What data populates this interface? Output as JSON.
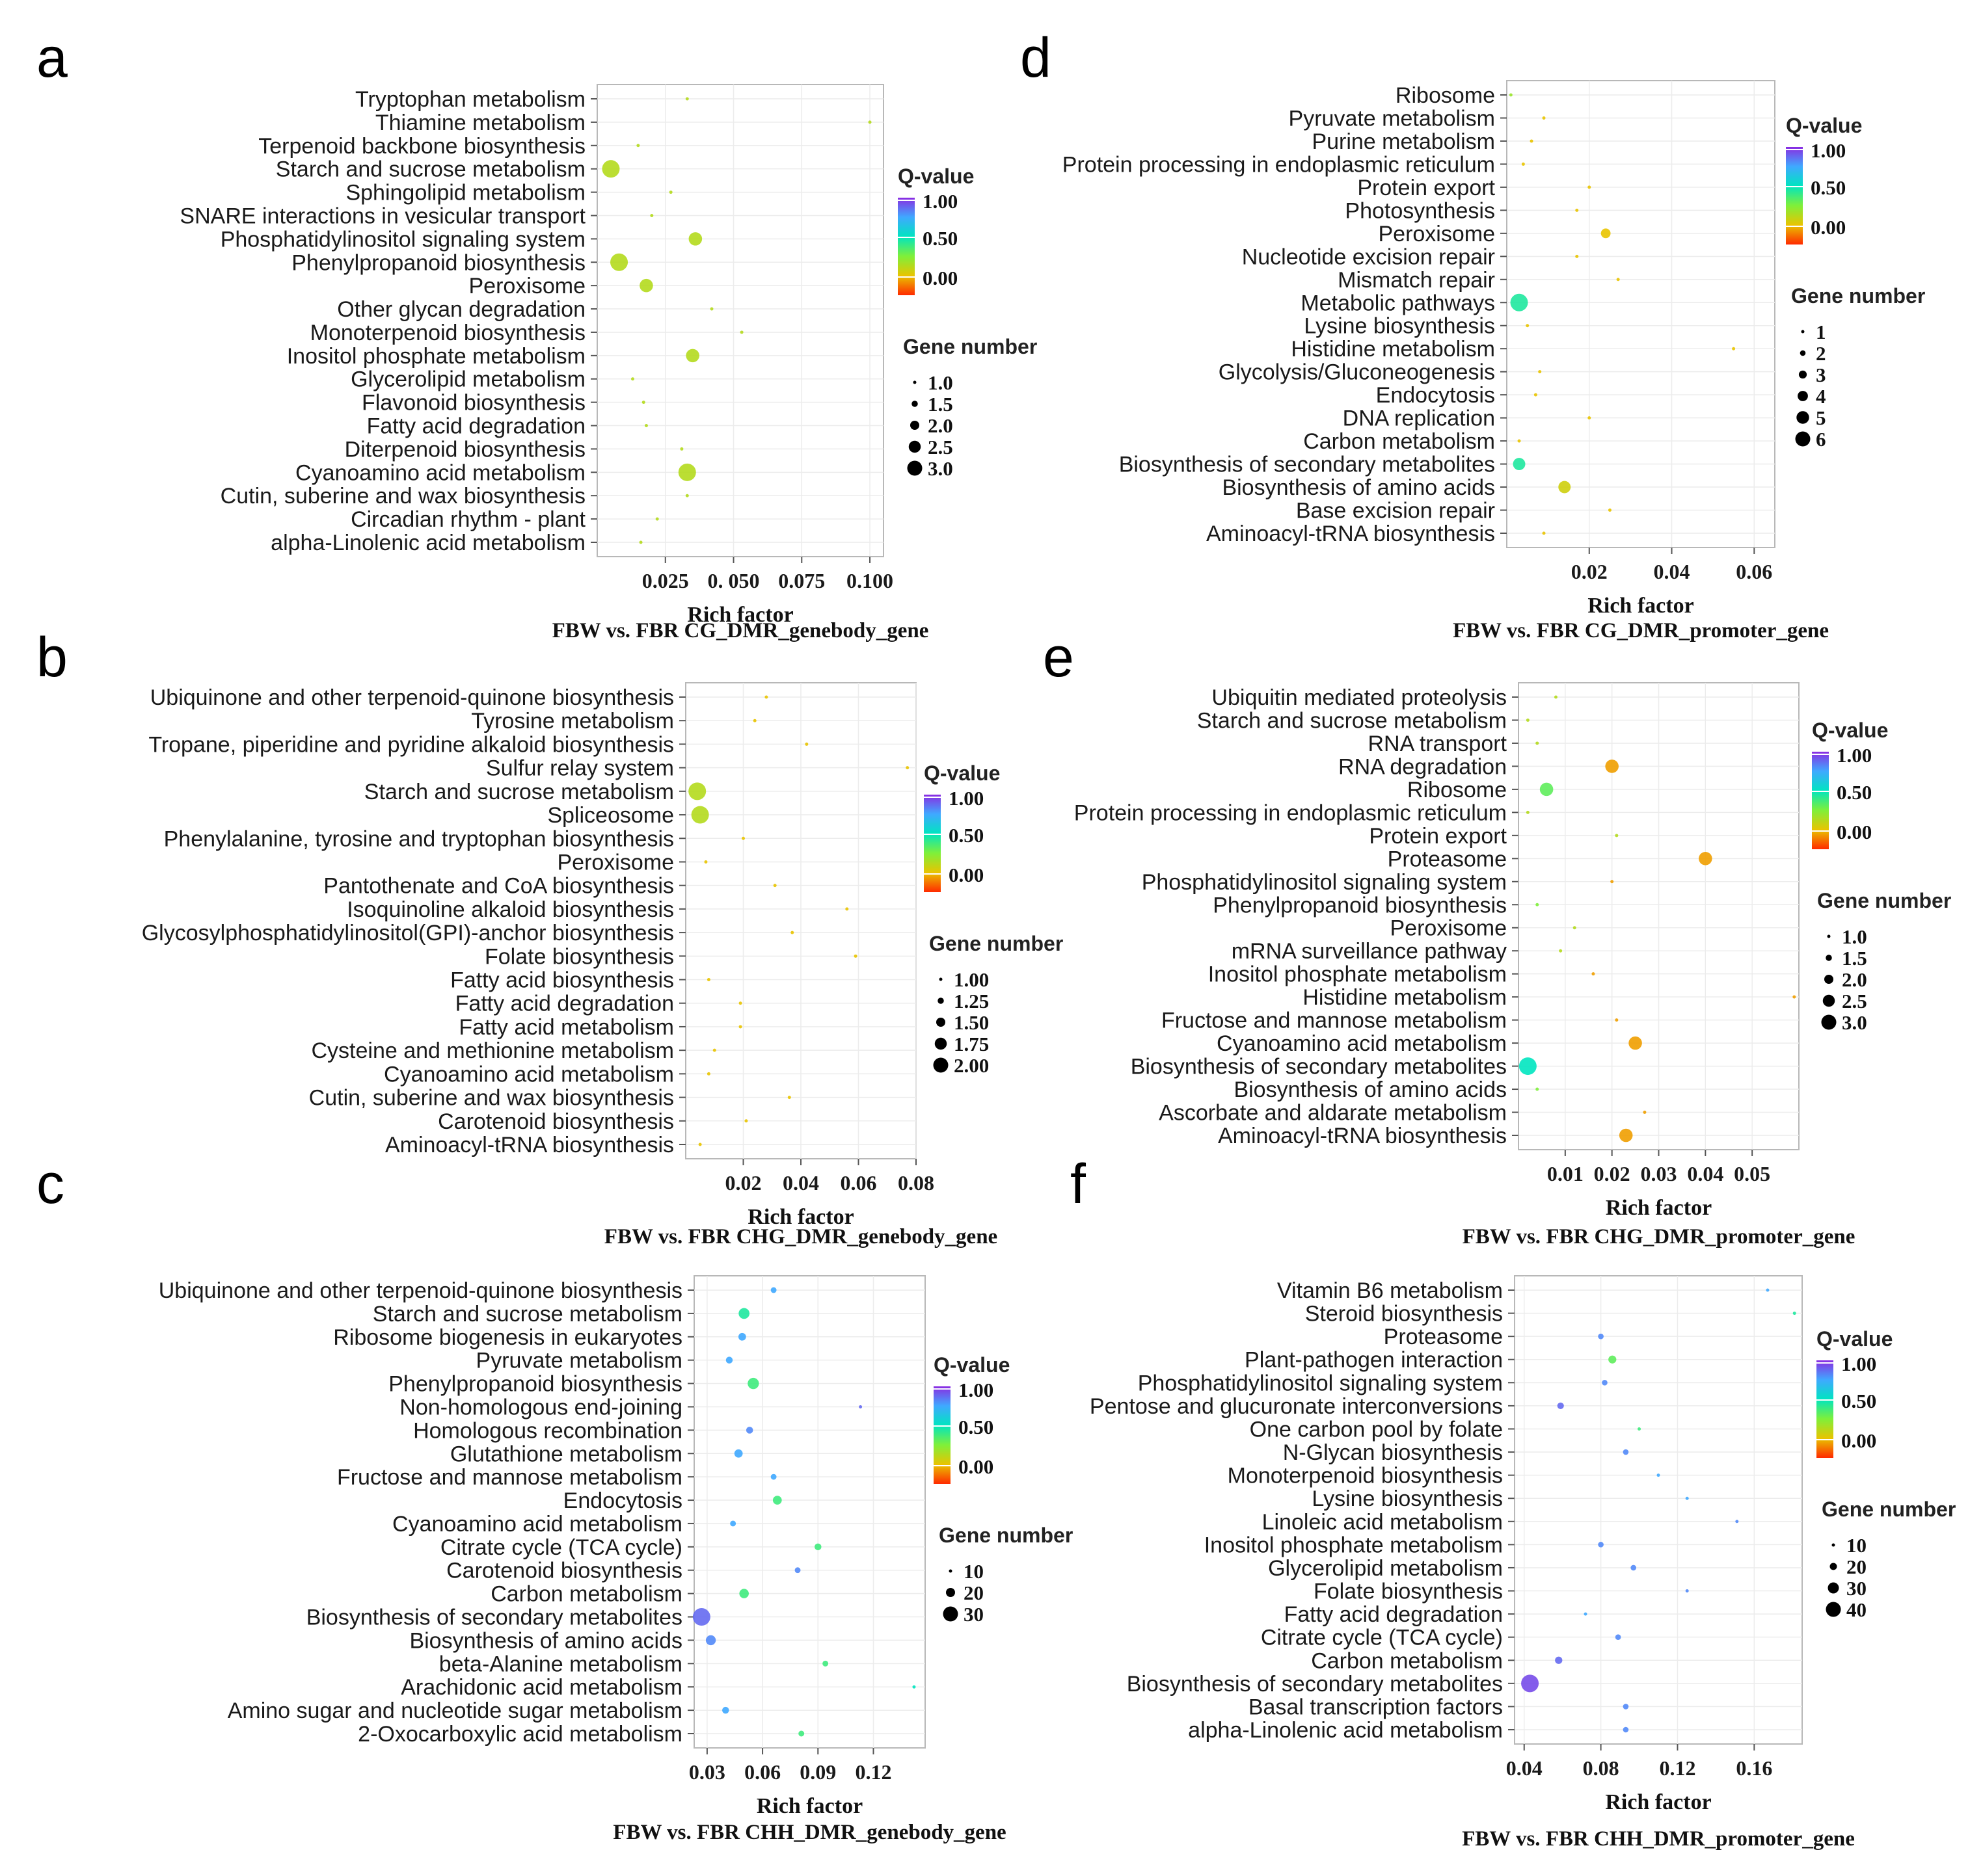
{
  "colors": {
    "q_high": "#8a2be2",
    "q_mid_high": "#3fa9ff",
    "q_mid": "#00e5c0",
    "q_mid_low": "#7ef03a",
    "q_low": "#e9c400",
    "q_zero": "#ff2a00"
  },
  "legend_common": {
    "q_title": "Q-value",
    "q_ticks": [
      "1.00",
      "0.50",
      "0.00"
    ],
    "size_title": "Gene number"
  },
  "chart_data": [
    {
      "panel": "a",
      "type": "scatter",
      "caption": "FBW vs. FBR CG_DMR_genebody_gene",
      "xlabel": "Rich factor",
      "xlim": [
        0.0,
        0.105
      ],
      "xticks": [
        0.025,
        0.05,
        0.075,
        0.1
      ],
      "xtick_labels": [
        "0.025",
        "0. 050",
        "0.075",
        "0.100"
      ],
      "size_legend": [
        "1.0",
        "1.5",
        "2.0",
        "2.5",
        "3.0"
      ],
      "size_range": [
        1,
        3
      ],
      "categories": [
        "Tryptophan metabolism",
        "Thiamine metabolism",
        "Terpenoid backbone biosynthesis",
        "Starch and sucrose metabolism",
        "Sphingolipid metabolism",
        "SNARE interactions in vesicular transport",
        "Phosphatidylinositol signaling system",
        "Phenylpropanoid biosynthesis",
        "Peroxisome",
        "Other glycan degradation",
        "Monoterpenoid biosynthesis",
        "Inositol phosphate metabolism",
        "Glycerolipid metabolism",
        "Flavonoid biosynthesis",
        "Fatty acid degradation",
        "Diterpenoid biosynthesis",
        "Cyanoamino acid metabolism",
        "Cutin, suberine and wax biosynthesis",
        "Circadian rhythm - plant",
        "alpha-Linolenic acid metabolism"
      ],
      "x": [
        0.033,
        0.1,
        0.015,
        0.005,
        0.027,
        0.02,
        0.036,
        0.008,
        0.018,
        0.042,
        0.053,
        0.035,
        0.013,
        0.017,
        0.018,
        0.031,
        0.033,
        0.033,
        0.022,
        0.016
      ],
      "gene_number": [
        1,
        1,
        1,
        3,
        1,
        1,
        2,
        3,
        2,
        1,
        1,
        2,
        1,
        1,
        1,
        1,
        3,
        1,
        1,
        1
      ],
      "q_value": [
        0.3,
        0.3,
        0.3,
        0.3,
        0.3,
        0.3,
        0.3,
        0.3,
        0.3,
        0.3,
        0.3,
        0.3,
        0.3,
        0.3,
        0.3,
        0.3,
        0.3,
        0.3,
        0.3,
        0.3
      ]
    },
    {
      "panel": "b",
      "type": "scatter",
      "caption": "FBW vs. FBR CHG_DMR_genebody_gene",
      "xlabel": "Rich factor",
      "xlim": [
        0.0,
        0.08
      ],
      "xticks": [
        0.02,
        0.04,
        0.06,
        0.08
      ],
      "xtick_labels": [
        "0.02",
        "0.04",
        "0.06",
        "0.08"
      ],
      "size_legend": [
        "1.00",
        "1.25",
        "1.50",
        "1.75",
        "2.00"
      ],
      "size_range": [
        1,
        2
      ],
      "categories": [
        "Ubiquinone and other terpenoid-quinone biosynthesis",
        "Tyrosine metabolism",
        "Tropane, piperidine and pyridine alkaloid biosynthesis",
        "Sulfur relay system",
        "Starch and sucrose metabolism",
        "Spliceosome",
        "Phenylalanine, tyrosine and tryptophan biosynthesis",
        "Peroxisome",
        "Pantothenate and CoA biosynthesis",
        "Isoquinoline alkaloid biosynthesis",
        "Glycosylphosphatidylinositol(GPI)-anchor biosynthesis",
        "Folate biosynthesis",
        "Fatty acid biosynthesis",
        "Fatty acid degradation",
        "Fatty acid metabolism",
        "Cysteine and methionine metabolism",
        "Cyanoamino acid metabolism",
        "Cutin, suberine and wax biosynthesis",
        "Carotenoid biosynthesis",
        "Aminoacyl-tRNA biosynthesis"
      ],
      "x": [
        0.028,
        0.024,
        0.042,
        0.077,
        0.004,
        0.005,
        0.02,
        0.007,
        0.031,
        0.056,
        0.037,
        0.059,
        0.008,
        0.019,
        0.019,
        0.01,
        0.008,
        0.036,
        0.021,
        0.005
      ],
      "gene_number": [
        1,
        1,
        1,
        1,
        2,
        2,
        1,
        1,
        1,
        1,
        1,
        1,
        1,
        1,
        1,
        1,
        1,
        1,
        1,
        1
      ],
      "q_value": [
        0.2,
        0.2,
        0.2,
        0.2,
        0.3,
        0.3,
        0.2,
        0.2,
        0.2,
        0.2,
        0.2,
        0.2,
        0.2,
        0.2,
        0.2,
        0.2,
        0.2,
        0.2,
        0.2,
        0.2
      ]
    },
    {
      "panel": "c",
      "type": "scatter",
      "caption": "FBW vs. FBR CHH_DMR_genebody_gene",
      "xlabel": "Rich factor",
      "xlim": [
        0.023,
        0.148
      ],
      "xticks": [
        0.03,
        0.06,
        0.09,
        0.12
      ],
      "xtick_labels": [
        "0.03",
        "0.06",
        "0.09",
        "0.12"
      ],
      "size_legend": [
        "10",
        "20",
        "30"
      ],
      "size_range": [
        3,
        35
      ],
      "categories": [
        "Ubiquinone and other terpenoid-quinone biosynthesis",
        "Starch and sucrose metabolism",
        "Ribosome biogenesis in eukaryotes",
        "Pyruvate metabolism",
        "Phenylpropanoid biosynthesis",
        "Non-homologous end-joining",
        "Homologous recombination",
        "Glutathione metabolism",
        "Fructose and mannose metabolism",
        "Endocytosis",
        "Cyanoamino acid metabolism",
        "Citrate cycle (TCA cycle)",
        "Carotenoid biosynthesis",
        "Carbon metabolism",
        "Biosynthesis of secondary metabolites",
        "Biosynthesis of amino acids",
        "beta-Alanine metabolism",
        "Arachidonic acid metabolism",
        "Amino sugar and nucleotide sugar metabolism",
        "2-Oxocarboxylic acid metabolism"
      ],
      "x": [
        0.066,
        0.05,
        0.049,
        0.042,
        0.055,
        0.113,
        0.053,
        0.047,
        0.066,
        0.068,
        0.044,
        0.09,
        0.079,
        0.05,
        0.027,
        0.032,
        0.094,
        0.142,
        0.04,
        0.081
      ],
      "gene_number": [
        4,
        12,
        6,
        5,
        13,
        3,
        5,
        7,
        4,
        8,
        4,
        5,
        4,
        9,
        35,
        10,
        4,
        3,
        5,
        4
      ],
      "q_value": [
        0.8,
        0.55,
        0.8,
        0.8,
        0.5,
        0.9,
        0.85,
        0.8,
        0.8,
        0.5,
        0.8,
        0.5,
        0.85,
        0.5,
        0.9,
        0.85,
        0.5,
        0.6,
        0.8,
        0.5
      ]
    },
    {
      "panel": "d",
      "type": "scatter",
      "caption": "FBW vs. FBR CG_DMR_promoter_gene",
      "xlabel": "Rich factor",
      "xlim": [
        0.0,
        0.065
      ],
      "xticks": [
        0.02,
        0.04,
        0.06
      ],
      "xtick_labels": [
        "0.02",
        "0.04",
        "0.06"
      ],
      "size_legend": [
        "1",
        "2",
        "3",
        "4",
        "5",
        "6"
      ],
      "size_range": [
        1,
        6
      ],
      "categories": [
        "Ribosome",
        "Pyruvate metabolism",
        "Purine metabolism",
        "Protein processing in endoplasmic reticulum",
        "Protein export",
        "Photosynthesis",
        "Peroxisome",
        "Nucleotide excision repair",
        "Mismatch repair",
        "Metabolic pathways",
        "Lysine biosynthesis",
        "Histidine metabolism",
        "Glycolysis/Gluconeogenesis",
        "Endocytosis",
        "DNA replication",
        "Carbon metabolism",
        "Biosynthesis of secondary metabolites",
        "Biosynthesis of amino acids",
        "Base excision repair",
        "Aminoacyl-tRNA biosynthesis"
      ],
      "x": [
        0.001,
        0.009,
        0.006,
        0.004,
        0.02,
        0.017,
        0.024,
        0.017,
        0.027,
        0.003,
        0.005,
        0.055,
        0.008,
        0.007,
        0.02,
        0.003,
        0.003,
        0.014,
        0.025,
        0.009
      ],
      "gene_number": [
        1,
        1,
        1,
        1,
        1,
        1,
        2,
        1,
        1,
        6,
        1,
        1,
        1,
        1,
        1,
        1,
        3,
        3,
        1,
        1
      ],
      "q_value": [
        0.35,
        0.2,
        0.2,
        0.2,
        0.2,
        0.2,
        0.2,
        0.2,
        0.2,
        0.55,
        0.2,
        0.2,
        0.2,
        0.2,
        0.2,
        0.2,
        0.55,
        0.25,
        0.2,
        0.2
      ]
    },
    {
      "panel": "e",
      "type": "scatter",
      "caption": "FBW vs. FBR CHG_DMR_promoter_gene",
      "xlabel": "Rich factor",
      "xlim": [
        0.0,
        0.06
      ],
      "xticks": [
        0.01,
        0.02,
        0.03,
        0.04,
        0.05
      ],
      "xtick_labels": [
        "0.01",
        "0.02",
        "0.03",
        "0.04",
        "0.05"
      ],
      "size_legend": [
        "1.0",
        "1.5",
        "2.0",
        "2.5",
        "3.0"
      ],
      "size_range": [
        1,
        3
      ],
      "categories": [
        "Ubiquitin mediated proteolysis",
        "Starch and sucrose metabolism",
        "RNA transport",
        "RNA degradation",
        "Ribosome",
        "Protein processing in endoplasmic reticulum",
        "Protein export",
        "Proteasome",
        "Phosphatidylinositol signaling system",
        "Phenylpropanoid biosynthesis",
        "Peroxisome",
        "mRNA surveillance pathway",
        "Inositol phosphate metabolism",
        "Histidine metabolism",
        "Fructose and mannose metabolism",
        "Cyanoamino acid metabolism",
        "Biosynthesis of secondary metabolites",
        "Biosynthesis of amino acids",
        "Ascorbate and aldarate metabolism",
        "Aminoacyl-tRNA biosynthesis"
      ],
      "x": [
        0.008,
        0.002,
        0.004,
        0.02,
        0.006,
        0.002,
        0.021,
        0.04,
        0.02,
        0.004,
        0.012,
        0.009,
        0.016,
        0.059,
        0.021,
        0.025,
        0.002,
        0.004,
        0.027,
        0.023
      ],
      "gene_number": [
        1,
        1,
        1,
        2,
        2,
        1,
        1,
        2,
        1,
        1,
        1,
        1,
        1,
        1,
        1,
        2,
        3,
        1,
        1,
        2
      ],
      "q_value": [
        0.3,
        0.3,
        0.3,
        0.15,
        0.45,
        0.3,
        0.3,
        0.15,
        0.15,
        0.4,
        0.3,
        0.3,
        0.15,
        0.15,
        0.15,
        0.15,
        0.6,
        0.4,
        0.15,
        0.15
      ]
    },
    {
      "panel": "f",
      "type": "scatter",
      "caption": "FBW vs. FBR CHH_DMR_promoter_gene",
      "xlabel": "Rich factor",
      "xlim": [
        0.035,
        0.185
      ],
      "xticks": [
        0.04,
        0.08,
        0.12,
        0.16
      ],
      "xtick_labels": [
        "0.04",
        "0.08",
        "0.12",
        "0.16"
      ],
      "size_legend": [
        "10",
        "20",
        "30",
        "40"
      ],
      "size_range": [
        3,
        40
      ],
      "categories": [
        "Vitamin B6 metabolism",
        "Steroid biosynthesis",
        "Proteasome",
        "Plant-pathogen interaction",
        "Phosphatidylinositol signaling system",
        "Pentose and glucuronate interconversions",
        "One carbon pool by folate",
        "N-Glycan biosynthesis",
        "Monoterpenoid biosynthesis",
        "Lysine biosynthesis",
        "Linoleic acid metabolism",
        "Inositol phosphate metabolism",
        "Glycerolipid metabolism",
        "Folate biosynthesis",
        "Fatty acid degradation",
        "Citrate cycle (TCA cycle)",
        "Carbon metabolism",
        "Biosynthesis of secondary metabolites",
        "Basal transcription factors",
        "alpha-Linolenic acid metabolism"
      ],
      "x": [
        0.167,
        0.181,
        0.08,
        0.086,
        0.082,
        0.059,
        0.1,
        0.093,
        0.11,
        0.125,
        0.151,
        0.08,
        0.097,
        0.125,
        0.072,
        0.089,
        0.058,
        0.043,
        0.093,
        0.093
      ],
      "gene_number": [
        3,
        3,
        4,
        7,
        4,
        5,
        3,
        4,
        3,
        3,
        3,
        4,
        4,
        3,
        3,
        4,
        6,
        40,
        4,
        4
      ],
      "q_value": [
        0.8,
        0.55,
        0.85,
        0.45,
        0.85,
        0.9,
        0.5,
        0.85,
        0.8,
        0.8,
        0.85,
        0.85,
        0.85,
        0.85,
        0.8,
        0.85,
        0.9,
        0.95,
        0.85,
        0.85
      ]
    }
  ]
}
